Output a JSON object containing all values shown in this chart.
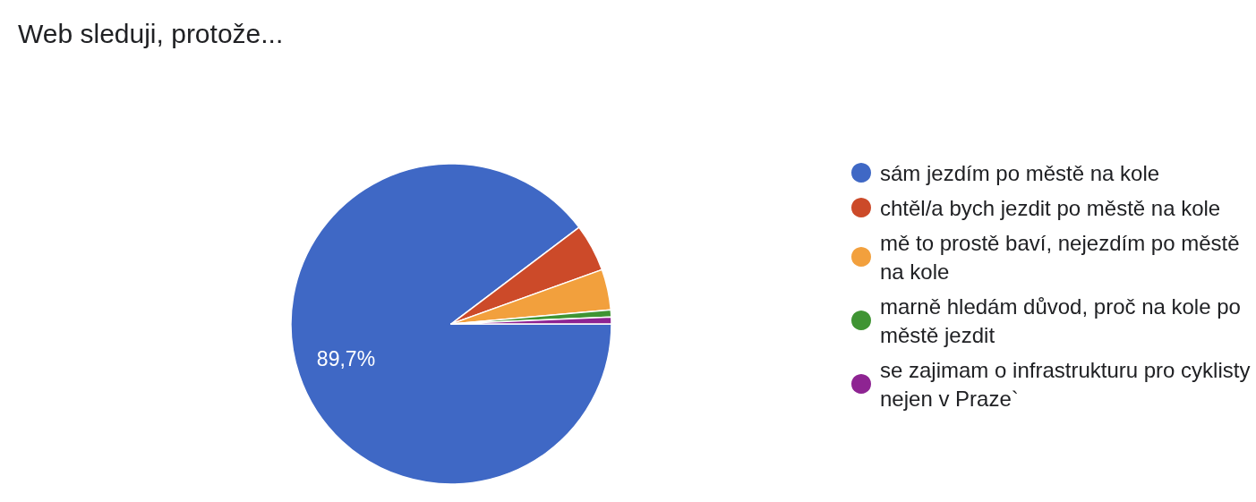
{
  "chart_data": {
    "type": "pie",
    "title": "Web sleduji, protože...",
    "categories": [
      "sám jezdím po městě na kole",
      "chtěl/a bych jezdit po městě na kole",
      "mě to prostě baví, nejezdím po městě na kole",
      "marně hledám důvod, proč na kole po městě jezdit",
      "se zajimam o infrastrukturu pro cyklisty nejen v Praze`"
    ],
    "values": [
      89.7,
      4.8,
      4.1,
      0.7,
      0.7
    ],
    "colors": [
      "#3f68c5",
      "#cc4a29",
      "#f2a03d",
      "#3f9433",
      "#8e2492"
    ],
    "value_labels": [
      "89,7%",
      null,
      null,
      null,
      null
    ],
    "legend": "right"
  }
}
